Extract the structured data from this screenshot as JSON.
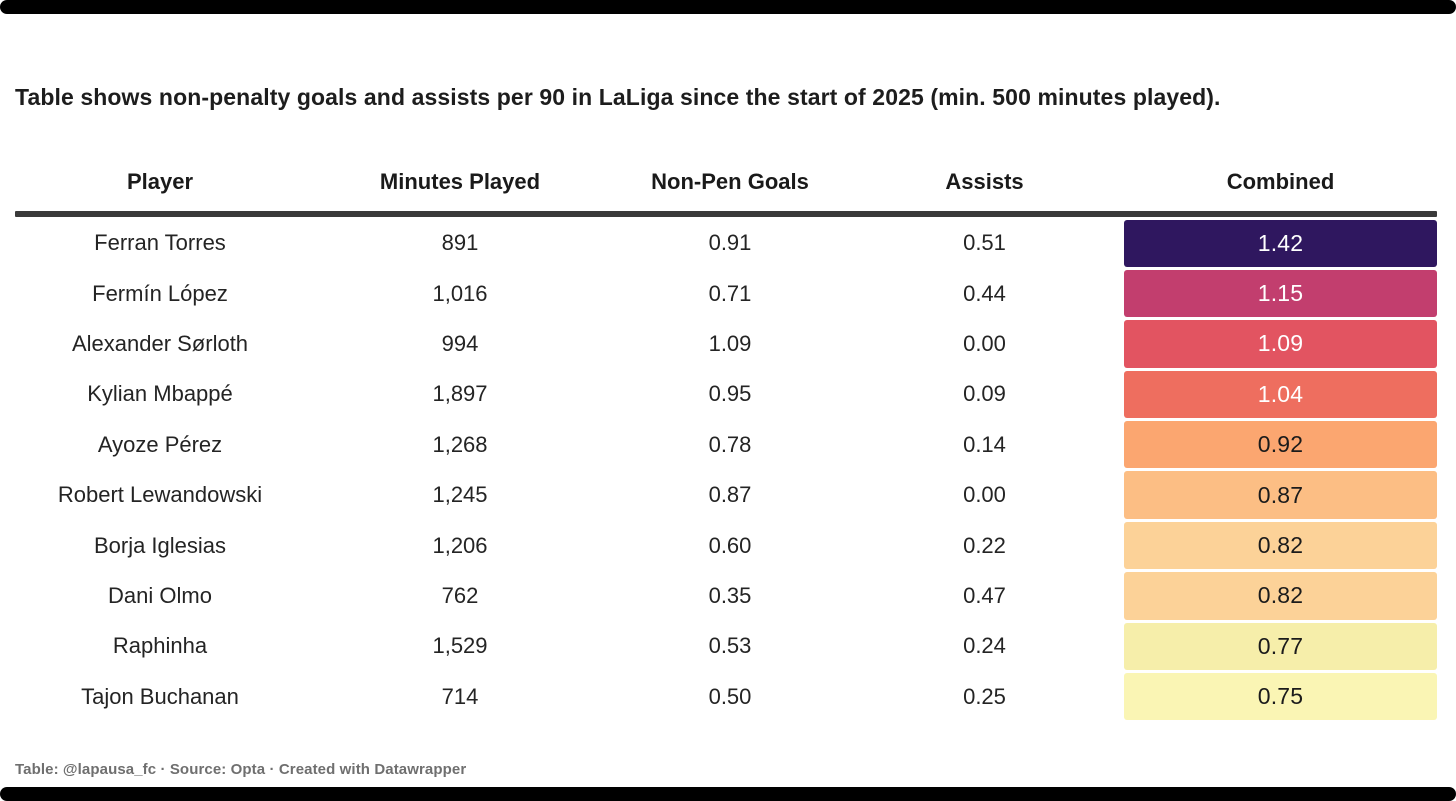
{
  "intro": "Table shows non-penalty goals and assists per 90 in LaLiga since the start of 2025 (min. 500 minutes played).",
  "footer": "Table: @lapausa_fc · Source: Opta · Created with Datawrapper",
  "table": {
    "columns": [
      "Player",
      "Minutes Played",
      "Non-Pen Goals",
      "Assists",
      "Combined"
    ]
  },
  "colors": {
    "header_rule": "#3a3a3a",
    "edge_bars": "#000000",
    "body_text": "#242424",
    "footer_text": "#6f6f6f"
  },
  "chart_data": {
    "type": "table",
    "title": "Table shows non-penalty goals and assists per 90 in LaLiga since the start of 2025 (min. 500 minutes played).",
    "columns": [
      "Player",
      "Minutes Played",
      "Non-Pen Goals",
      "Assists",
      "Combined"
    ],
    "heatmap_column": "Combined",
    "combined_range": [
      0.75,
      1.42
    ],
    "rows": [
      {
        "player": "Ferran Torres",
        "minutes": "891",
        "non_pen_goals": "0.91",
        "assists": "0.51",
        "combined": "1.42",
        "cell_color": "#2f175f",
        "text_color": "#ffffff"
      },
      {
        "player": "Fermín López",
        "minutes": "1,016",
        "non_pen_goals": "0.71",
        "assists": "0.44",
        "combined": "1.15",
        "cell_color": "#c23e6e",
        "text_color": "#ffffff"
      },
      {
        "player": "Alexander Sørloth",
        "minutes": "994",
        "non_pen_goals": "1.09",
        "assists": "0.00",
        "combined": "1.09",
        "cell_color": "#e25461",
        "text_color": "#ffffff"
      },
      {
        "player": "Kylian Mbappé",
        "minutes": "1,897",
        "non_pen_goals": "0.95",
        "assists": "0.09",
        "combined": "1.04",
        "cell_color": "#ee6e5f",
        "text_color": "#ffffff"
      },
      {
        "player": "Ayoze Pérez",
        "minutes": "1,268",
        "non_pen_goals": "0.78",
        "assists": "0.14",
        "combined": "0.92",
        "cell_color": "#fba670",
        "text_color": "#1b1b1b"
      },
      {
        "player": "Robert Lewandowski",
        "minutes": "1,245",
        "non_pen_goals": "0.87",
        "assists": "0.00",
        "combined": "0.87",
        "cell_color": "#fcbe84",
        "text_color": "#1b1b1b"
      },
      {
        "player": "Borja Iglesias",
        "minutes": "1,206",
        "non_pen_goals": "0.60",
        "assists": "0.22",
        "combined": "0.82",
        "cell_color": "#fcd298",
        "text_color": "#1b1b1b"
      },
      {
        "player": "Dani Olmo",
        "minutes": "762",
        "non_pen_goals": "0.35",
        "assists": "0.47",
        "combined": "0.82",
        "cell_color": "#fcd298",
        "text_color": "#1b1b1b"
      },
      {
        "player": "Raphinha",
        "minutes": "1,529",
        "non_pen_goals": "0.53",
        "assists": "0.24",
        "combined": "0.77",
        "cell_color": "#f6eeaa",
        "text_color": "#1b1b1b"
      },
      {
        "player": "Tajon Buchanan",
        "minutes": "714",
        "non_pen_goals": "0.50",
        "assists": "0.25",
        "combined": "0.75",
        "cell_color": "#faf5b4",
        "text_color": "#1b1b1b"
      }
    ]
  }
}
